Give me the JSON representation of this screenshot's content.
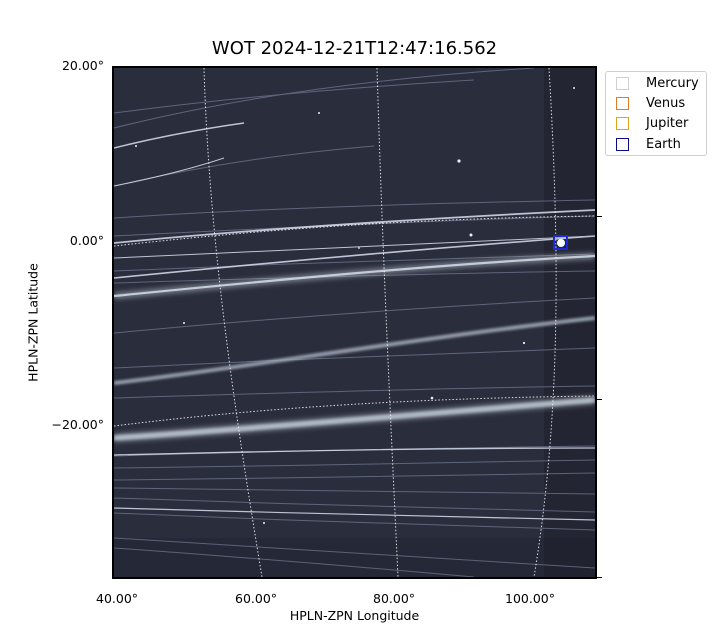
{
  "title": "WOT 2024-12-21T12:47:16.562",
  "axes": {
    "xlabel": "HPLN-ZPN Longitude",
    "ylabel": "HPLN-ZPN Latitude",
    "y_ticks": [
      "20.00°",
      "0.00°",
      "−20.00°"
    ],
    "x_ticks": [
      "40.00°",
      "60.00°",
      "80.00°",
      "100.00°"
    ]
  },
  "legend": [
    {
      "label": "Mercury",
      "color": "#d0d0d0"
    },
    {
      "label": "Venus",
      "color": "#e07a2b"
    },
    {
      "label": "Jupiter",
      "color": "#e0a31a"
    },
    {
      "label": "Earth",
      "color": "#0a0a8a"
    }
  ],
  "marker": {
    "name": "Earth",
    "color": "#1a2ae0"
  }
}
